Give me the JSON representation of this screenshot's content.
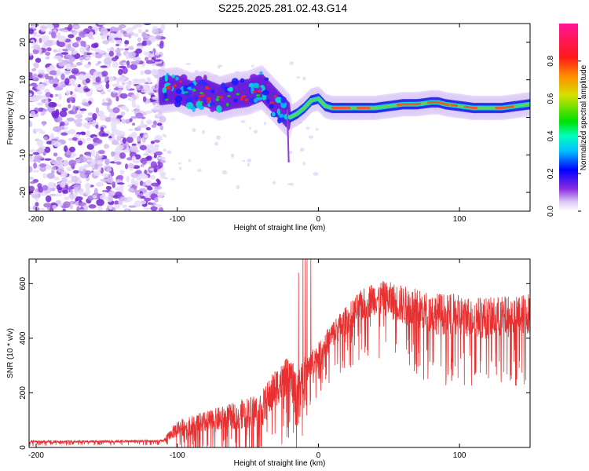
{
  "title": "S225.2025.281.02.43.G14",
  "chart_data": [
    {
      "type": "heatmap",
      "name": "spectrogram",
      "xlabel": "Height of straight line (km)",
      "ylabel": "Frequency (Hz)",
      "xlim": [
        -205,
        150
      ],
      "ylim": [
        -25,
        25
      ],
      "xticks": [
        -200,
        -100,
        0,
        100
      ],
      "yticks": [
        -20,
        -10,
        0,
        10,
        20
      ],
      "colorbar": {
        "label": "Normalized spectral amplitude",
        "range": [
          0.0,
          1.0
        ],
        "ticks": [
          0.0,
          0.2,
          0.4,
          0.6,
          0.8
        ]
      },
      "ridge": {
        "x": [
          -110,
          -100,
          -90,
          -80,
          -70,
          -60,
          -50,
          -40,
          -30,
          -25,
          -20,
          -15,
          -10,
          -5,
          0,
          5,
          10,
          20,
          30,
          40,
          50,
          60,
          70,
          80,
          85,
          90,
          100,
          110,
          120,
          130,
          140,
          150
        ],
        "freq": [
          7,
          7.5,
          6,
          6.5,
          5,
          6,
          6.5,
          8,
          4,
          2,
          0,
          1,
          2.5,
          4.5,
          5,
          3,
          2.5,
          2.5,
          2.5,
          2.5,
          3,
          3.5,
          3.5,
          4,
          4,
          3.5,
          3,
          2.5,
          2.5,
          2.5,
          3,
          3.5
        ]
      }
    },
    {
      "type": "line",
      "name": "snr",
      "xlabel": "Height of straight line (km)",
      "ylabel": "SNR (10 * v/v)",
      "xlim": [
        -205,
        150
      ],
      "ylim": [
        0,
        690
      ],
      "xticks": [
        -200,
        -100,
        0,
        100
      ],
      "yticks": [
        0,
        200,
        400,
        600
      ],
      "color": "#e83030",
      "envelope": {
        "x": [
          -205,
          -110,
          -100,
          -80,
          -60,
          -40,
          -30,
          -20,
          -15,
          -10,
          -5,
          0,
          10,
          20,
          30,
          40,
          50,
          60,
          80,
          100,
          120,
          140,
          150
        ],
        "base": [
          20,
          22,
          60,
          80,
          100,
          120,
          200,
          250,
          120,
          260,
          300,
          320,
          400,
          450,
          500,
          530,
          520,
          500,
          470,
          460,
          450,
          460,
          470
        ],
        "amp": [
          10,
          10,
          70,
          90,
          110,
          150,
          160,
          150,
          250,
          120,
          120,
          110,
          110,
          120,
          130,
          140,
          150,
          160,
          170,
          170,
          170,
          170,
          170
        ]
      }
    }
  ]
}
